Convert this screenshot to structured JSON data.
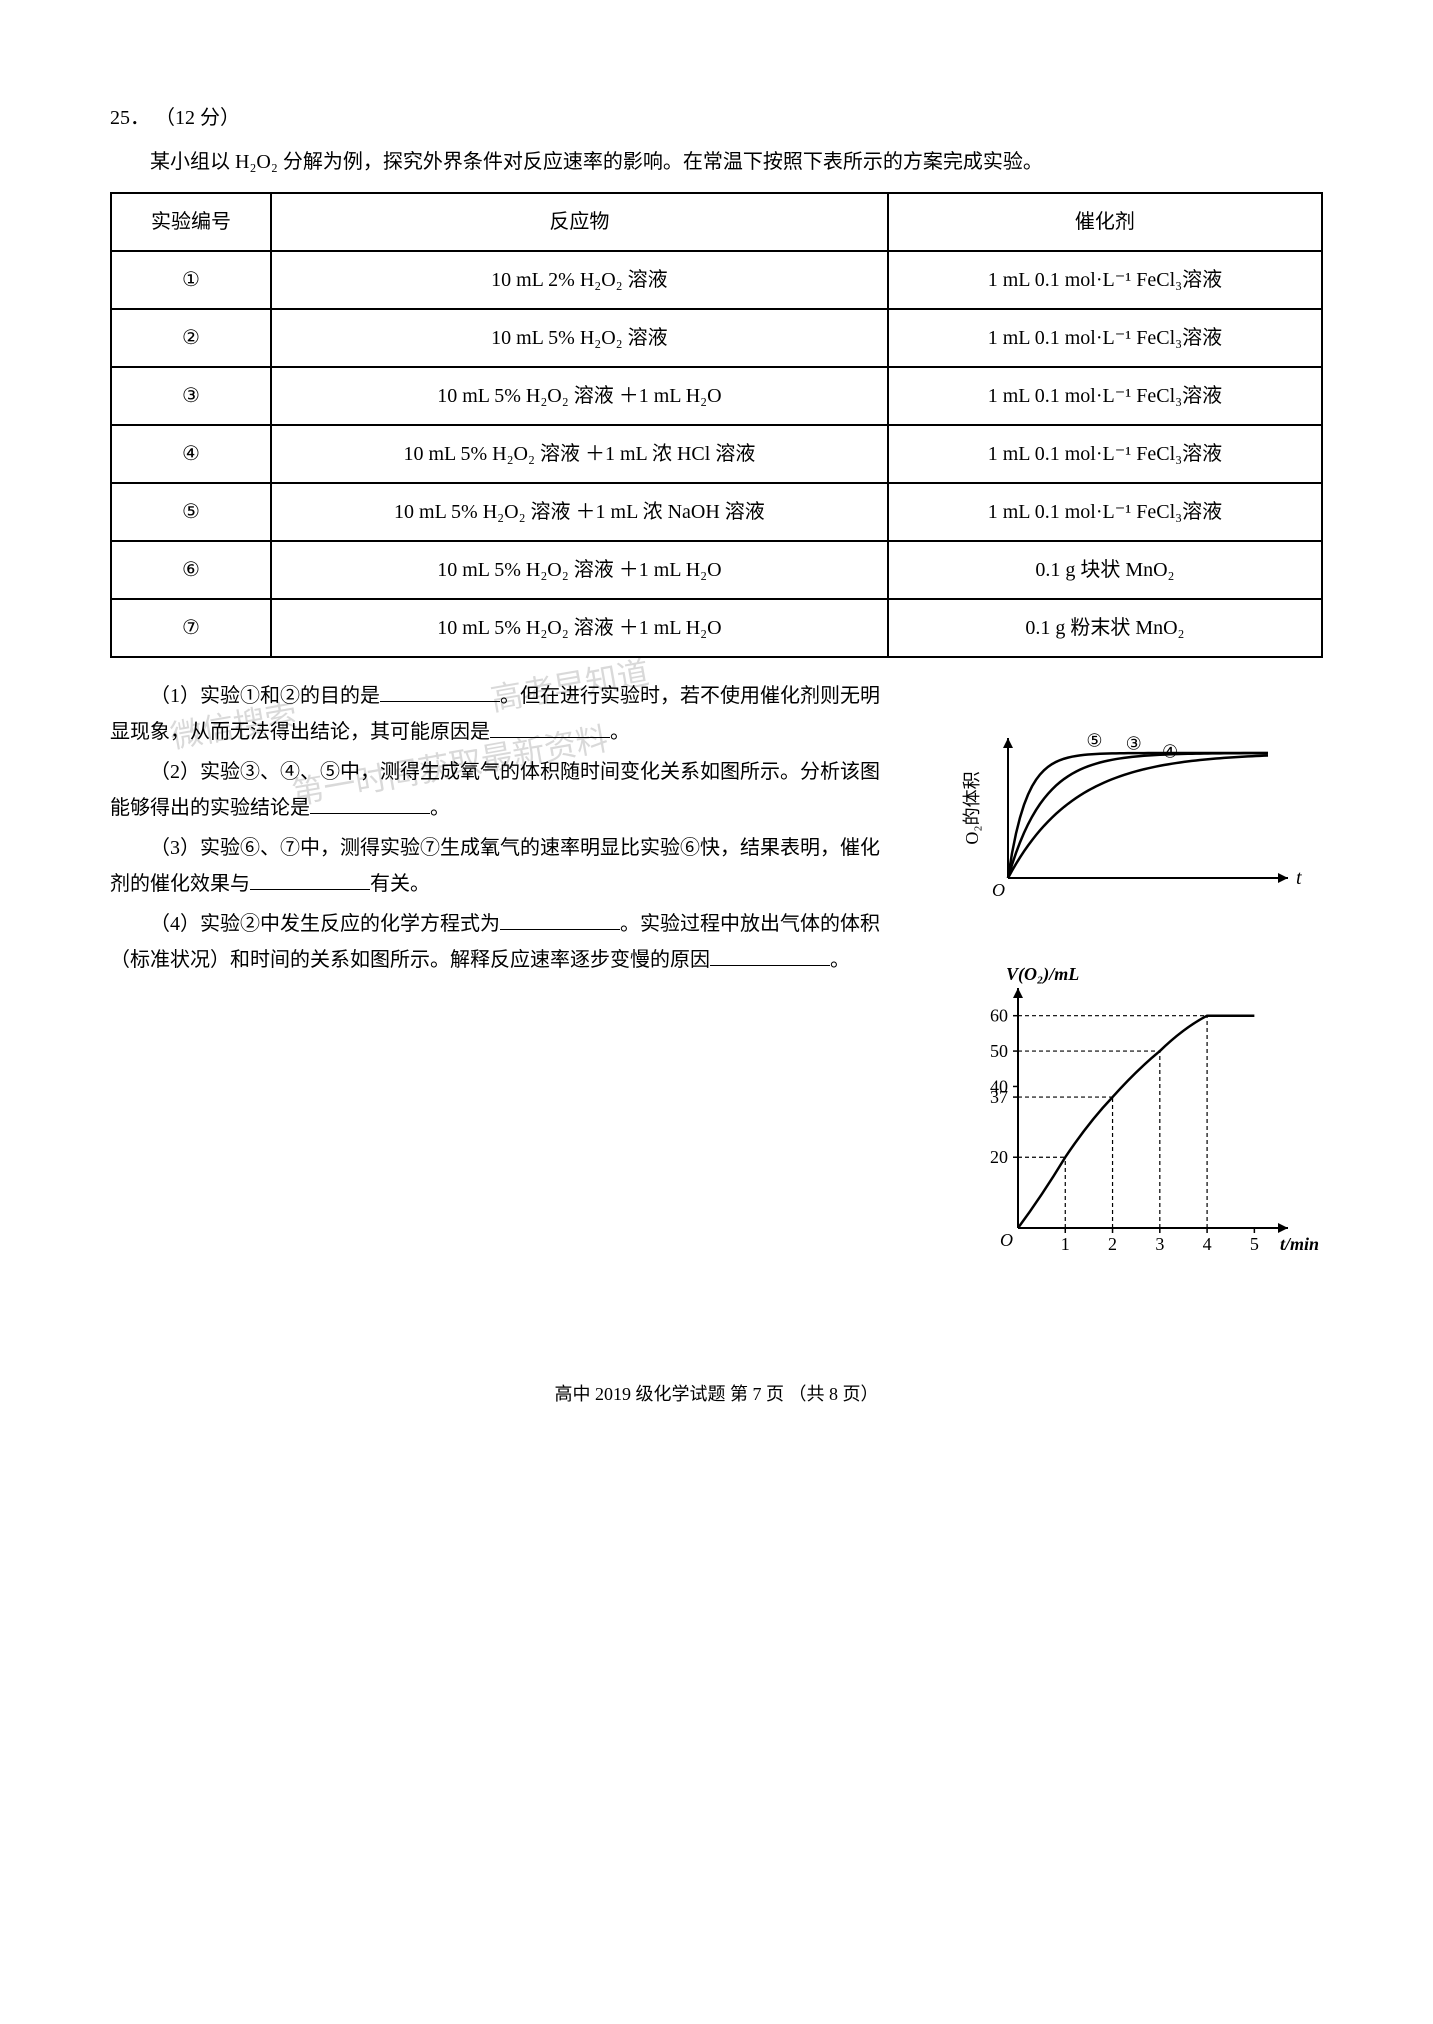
{
  "header": {
    "number": "25．",
    "points": "（12 分）"
  },
  "intro": "某小组以 H₂O₂ 分解为例，探究外界条件对反应速率的影响。在常温下按照下表所示的方案完成实验。",
  "table": {
    "headers": [
      "实验编号",
      "反应物",
      "催化剂"
    ],
    "rows": [
      [
        "①",
        "10 mL 2% H₂O₂ 溶液",
        "1 mL 0.1 mol·L⁻¹ FeCl₃溶液"
      ],
      [
        "②",
        "10 mL 5% H₂O₂ 溶液",
        "1 mL 0.1 mol·L⁻¹ FeCl₃溶液"
      ],
      [
        "③",
        "10 mL 5% H₂O₂ 溶液 ＋1 mL H₂O",
        "1 mL 0.1 mol·L⁻¹ FeCl₃溶液"
      ],
      [
        "④",
        "10 mL 5% H₂O₂ 溶液 ＋1 mL 浓 HCl 溶液",
        "1 mL 0.1 mol·L⁻¹ FeCl₃溶液"
      ],
      [
        "⑤",
        "10 mL 5% H₂O₂ 溶液 ＋1 mL 浓 NaOH 溶液",
        "1 mL 0.1 mol·L⁻¹ FeCl₃溶液"
      ],
      [
        "⑥",
        "10 mL 5% H₂O₂ 溶液 ＋1 mL H₂O",
        "0.1 g 块状 MnO₂"
      ],
      [
        "⑦",
        "10 mL 5% H₂O₂ 溶液 ＋1 mL H₂O",
        "0.1 g 粉末状 MnO₂"
      ]
    ],
    "col_widths": [
      "140px",
      "540px",
      "380px"
    ]
  },
  "questions": {
    "q1a": "（1）实验①和②的目的是",
    "q1b": "。但在进行实验时，若不使用催化剂则无明显现象，从而无法得出结论，其可能原因是",
    "q1c": "。",
    "q2a": "（2）实验③、④、⑤中，测得生成氧气的体积随时间变化关系如图所示。分析该图能够得出的实验结论是",
    "q2b": "。",
    "q3a": "（3）实验⑥、⑦中，测得实验⑦生成氧气的速率明显比实验⑥快，结果表明，催化剂的催化效果与",
    "q3b": "有关。",
    "q4a": "（4）实验②中发生反应的化学方程式为",
    "q4b": "。实验过程中放出气体的体积（标准状况）和时间的关系如图所示。解释反应速率逐步变慢的原因",
    "q4c": "。"
  },
  "chart1": {
    "type": "line",
    "ylabel": "O₂的体积",
    "xlabel": "t",
    "curves": [
      "⑤",
      "③",
      "④"
    ],
    "curve_colors": [
      "#000",
      "#000",
      "#000"
    ],
    "background": "#ffffff",
    "axis_color": "#000000",
    "line_width": 2.5
  },
  "chart2": {
    "type": "line",
    "ylabel": "V(O₂)/mL",
    "xlabel": "t/min",
    "yticks": [
      20,
      37,
      40,
      50,
      60
    ],
    "xticks": [
      1,
      2,
      3,
      4,
      5
    ],
    "hmax": 60,
    "data_points": [
      [
        0,
        0
      ],
      [
        1,
        20
      ],
      [
        2,
        37
      ],
      [
        3,
        50
      ],
      [
        4,
        60
      ],
      [
        5,
        60
      ]
    ],
    "dashed_refs": [
      [
        1,
        20
      ],
      [
        2,
        37
      ],
      [
        3,
        50
      ],
      [
        4,
        60
      ]
    ],
    "background": "#ffffff",
    "axis_color": "#000000",
    "line_width": 2.5,
    "label_fontsize": 18
  },
  "footer": "高中 2019 级化学试题  第 7 页 （共 8 页）",
  "watermarks": [
    "微信搜索",
    "高考早知道",
    "第一时间获取最新资料"
  ]
}
